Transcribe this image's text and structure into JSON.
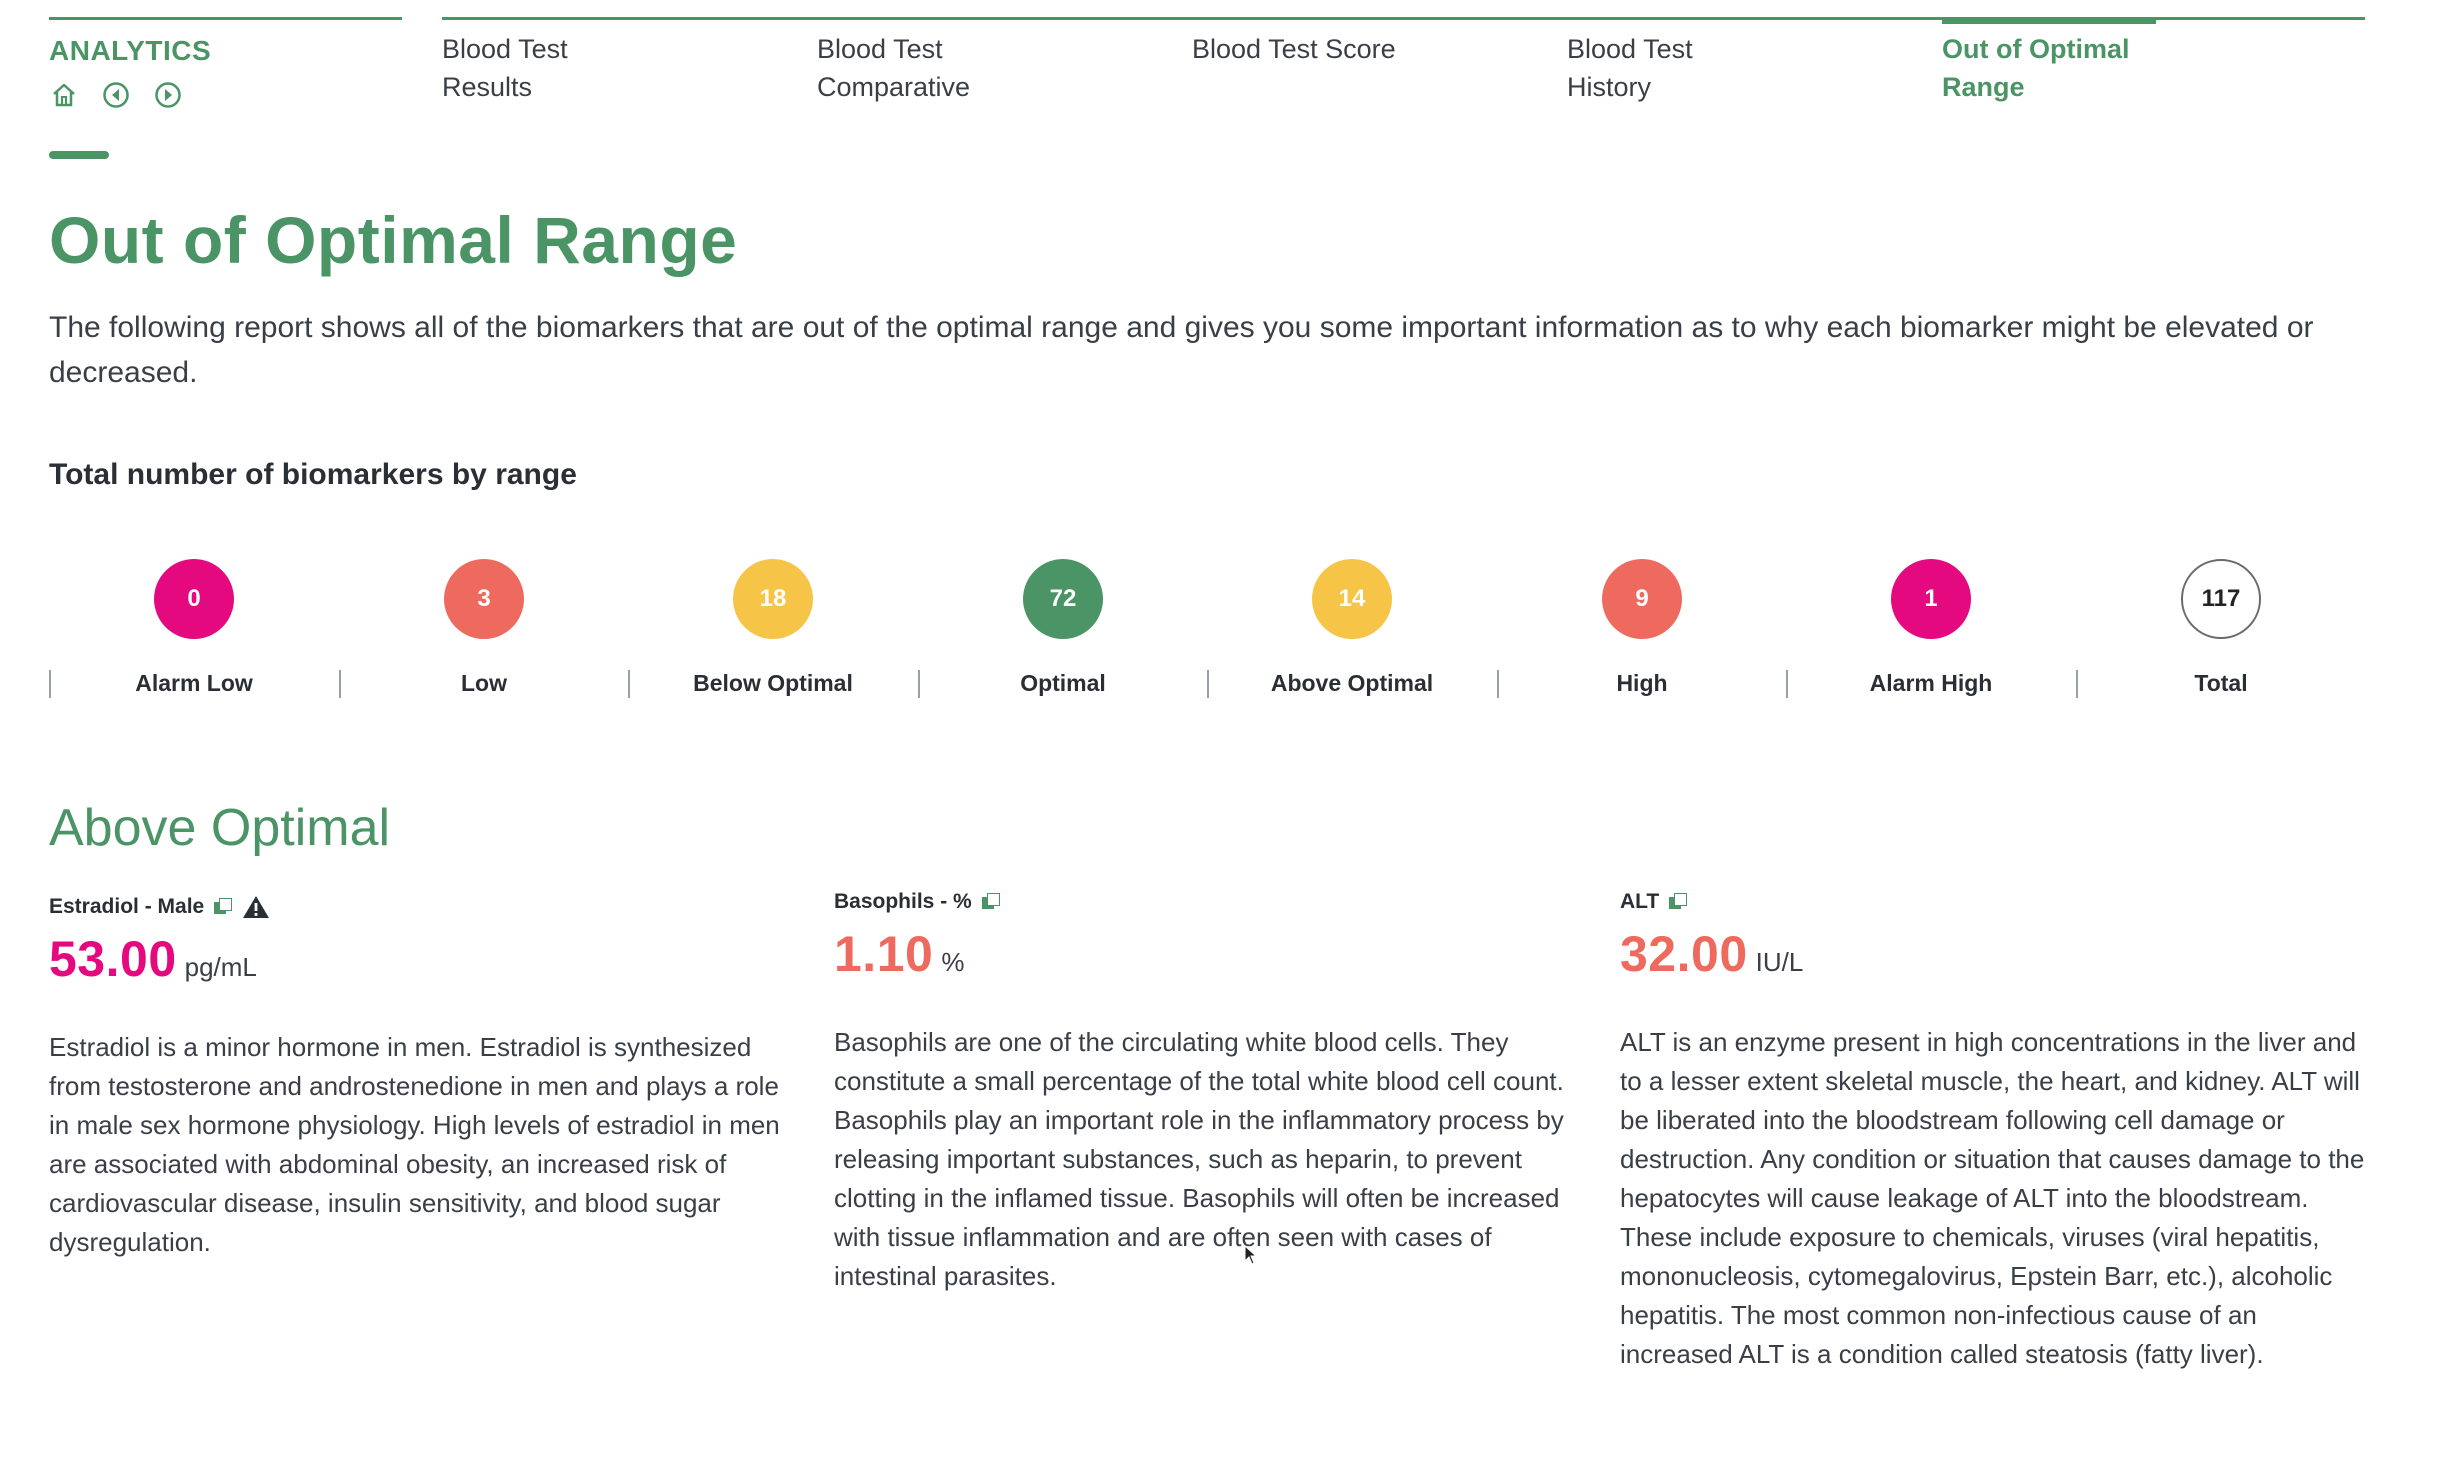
{
  "header": {
    "analytics_label": "ANALYTICS",
    "icons": [
      "home-icon",
      "back-icon",
      "forward-icon"
    ],
    "tabs": [
      {
        "label_line1": "Blood Test",
        "label_line2": "Results",
        "active": false
      },
      {
        "label_line1": "Blood Test",
        "label_line2": "Comparative",
        "active": false
      },
      {
        "label_line1": "Blood Test Score",
        "label_line2": "",
        "active": false
      },
      {
        "label_line1": "Blood Test",
        "label_line2": "History",
        "active": false
      },
      {
        "label_line1": "Out of Optimal",
        "label_line2": "Range",
        "active": true
      }
    ]
  },
  "page": {
    "title": "Out of Optimal Range",
    "description": "The following report shows all of the biomarkers that are out of the optimal range and gives you some important information as to why each biomarker might be elevated or decreased.",
    "ranges_heading": "Total number of biomarkers by range"
  },
  "ranges": [
    {
      "label": "Alarm Low",
      "count": "0",
      "color": "#e5097f"
    },
    {
      "label": "Low",
      "count": "3",
      "color": "#ee6a5e"
    },
    {
      "label": "Below Optimal",
      "count": "18",
      "color": "#f6c447"
    },
    {
      "label": "Optimal",
      "count": "72",
      "color": "#4a9465"
    },
    {
      "label": "Above Optimal",
      "count": "14",
      "color": "#f6c447"
    },
    {
      "label": "High",
      "count": "9",
      "color": "#ee6a5e"
    },
    {
      "label": "Alarm High",
      "count": "1",
      "color": "#e5097f"
    },
    {
      "label": "Total",
      "count": "117",
      "color": "#ffffff"
    }
  ],
  "section": {
    "title": "Above Optimal",
    "cards": [
      {
        "name": "Estradiol - Male",
        "value": "53.00",
        "unit": "pg/mL",
        "value_color": "#e5097f",
        "has_warning": true,
        "description": "Estradiol is a minor hormone in men. Estradiol is synthesized from testosterone and androstenedione in men and plays a role in male sex hormone physiology. High levels of estradiol in men are associated with abdominal obesity, an increased risk of cardiovascular disease, insulin sensitivity, and blood sugar dysregulation."
      },
      {
        "name": "Basophils - %",
        "value": "1.10",
        "unit": "%",
        "value_color": "#ee6a5e",
        "has_warning": false,
        "description": "Basophils are one of the circulating white blood cells. They constitute a small percentage of the total white blood cell count.  Basophils play an important role in the inflammatory process by releasing important substances, such as heparin, to prevent clotting in the inflamed tissue. Basophils will often be increased with tissue inflammation and are often seen with cases of intestinal parasites."
      },
      {
        "name": "ALT",
        "value": "32.00",
        "unit": "IU/L",
        "value_color": "#ee6a5e",
        "has_warning": false,
        "description": "ALT is an enzyme present in high concentrations in the liver and to a lesser extent skeletal muscle, the heart, and kidney.  ALT will be liberated into the bloodstream following cell damage or destruction. Any condition or situation that causes damage to the hepatocytes will cause leakage of ALT into the bloodstream. These include exposure to chemicals, viruses (viral hepatitis, mononucleosis, cytomegalovirus, Epstein Barr, etc.), alcoholic hepatitis. The most common non-infectious cause of an increased ALT is a condition called steatosis (fatty liver)."
      }
    ]
  }
}
